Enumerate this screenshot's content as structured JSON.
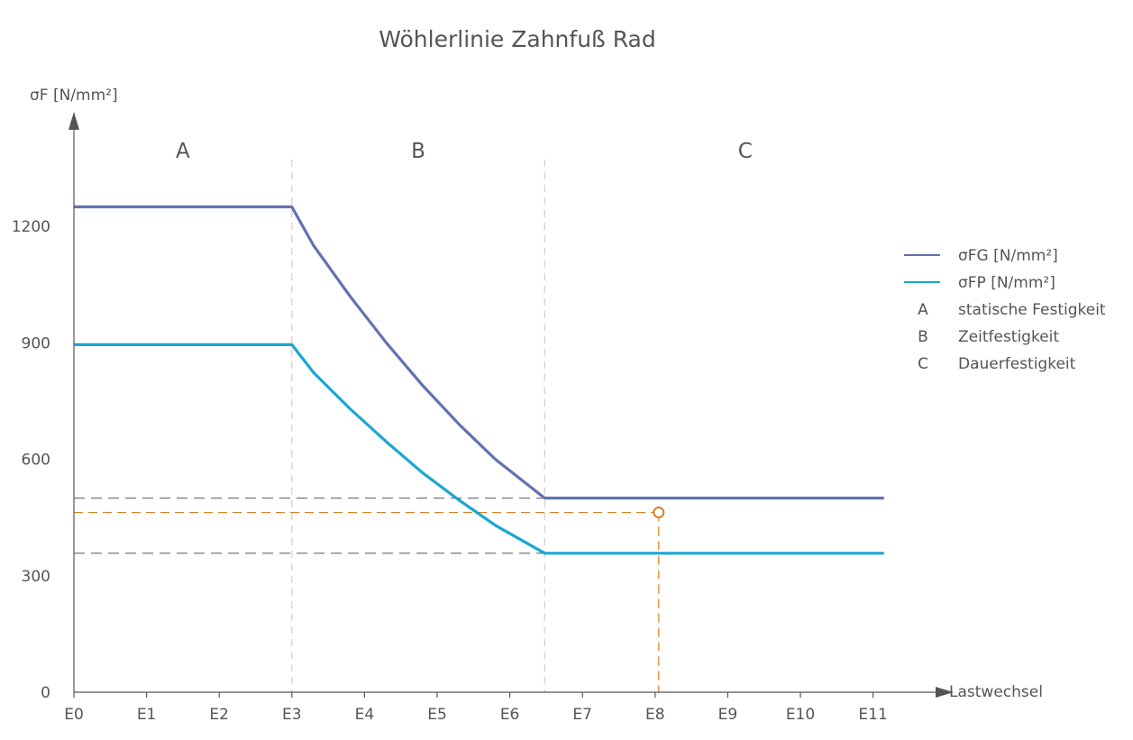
{
  "chart_data": {
    "type": "line",
    "title": "Wöhlerlinie Zahnfuß Rad",
    "ylabel": "σF [N/mm²]",
    "xlabel": "Lastwechsel",
    "x_scale": "log10",
    "xlim": [
      0,
      11.15
    ],
    "ylim": [
      0,
      1360
    ],
    "x_ticks": [
      {
        "value": 0,
        "label": "E0"
      },
      {
        "value": 1,
        "label": "E1"
      },
      {
        "value": 2,
        "label": "E2"
      },
      {
        "value": 3,
        "label": "E3"
      },
      {
        "value": 4,
        "label": "E4"
      },
      {
        "value": 5,
        "label": "E5"
      },
      {
        "value": 6,
        "label": "E6"
      },
      {
        "value": 7,
        "label": "E7"
      },
      {
        "value": 8,
        "label": "E8"
      },
      {
        "value": 9,
        "label": "E9"
      },
      {
        "value": 10,
        "label": "E10"
      },
      {
        "value": 11,
        "label": "E11"
      }
    ],
    "y_ticks": [
      {
        "value": 0,
        "label": "0"
      },
      {
        "value": 300,
        "label": "300"
      },
      {
        "value": 600,
        "label": "600"
      },
      {
        "value": 900,
        "label": "900"
      },
      {
        "value": 1200,
        "label": "1200"
      }
    ],
    "series": [
      {
        "name": "σFG [N/mm²]",
        "color": "#6272b0",
        "points": [
          [
            0,
            1250
          ],
          [
            3,
            1250
          ],
          [
            3.3,
            1150
          ],
          [
            3.8,
            1020
          ],
          [
            4.3,
            900
          ],
          [
            4.8,
            790
          ],
          [
            5.3,
            690
          ],
          [
            5.8,
            600
          ],
          [
            6.48,
            500
          ],
          [
            11.15,
            500
          ]
        ]
      },
      {
        "name": "σFP [N/mm²]",
        "color": "#1aa7d1",
        "points": [
          [
            0,
            895
          ],
          [
            3,
            895
          ],
          [
            3.3,
            823
          ],
          [
            3.8,
            730
          ],
          [
            4.3,
            645
          ],
          [
            4.8,
            565
          ],
          [
            5.3,
            495
          ],
          [
            5.8,
            430
          ],
          [
            6.48,
            358
          ],
          [
            11.15,
            358
          ]
        ]
      }
    ],
    "regions": [
      {
        "label": "A",
        "x_center": 1.5
      },
      {
        "label": "B",
        "x_center": 4.74
      },
      {
        "label": "C",
        "x_center": 9.24
      }
    ],
    "region_boundaries": [
      3,
      6.48
    ],
    "reference_lines": [
      {
        "y": 500,
        "x_to": 6.48,
        "color": "#777777"
      },
      {
        "y": 358,
        "x_to": 6.48,
        "color": "#777777"
      }
    ],
    "marker": {
      "x": 8.05,
      "y": 463,
      "color": "#d97f1e"
    },
    "legend": {
      "position": "right",
      "entries": [
        {
          "key": "",
          "label": "σFG [N/mm²]",
          "color": "#6272b0"
        },
        {
          "key": "",
          "label": "σFP [N/mm²]",
          "color": "#1aa7d1"
        },
        {
          "key": "A",
          "label": "statische Festigkeit"
        },
        {
          "key": "B",
          "label": "Zeitfestigkeit"
        },
        {
          "key": "C",
          "label": "Dauerfestigkeit"
        }
      ]
    },
    "grid": false
  }
}
